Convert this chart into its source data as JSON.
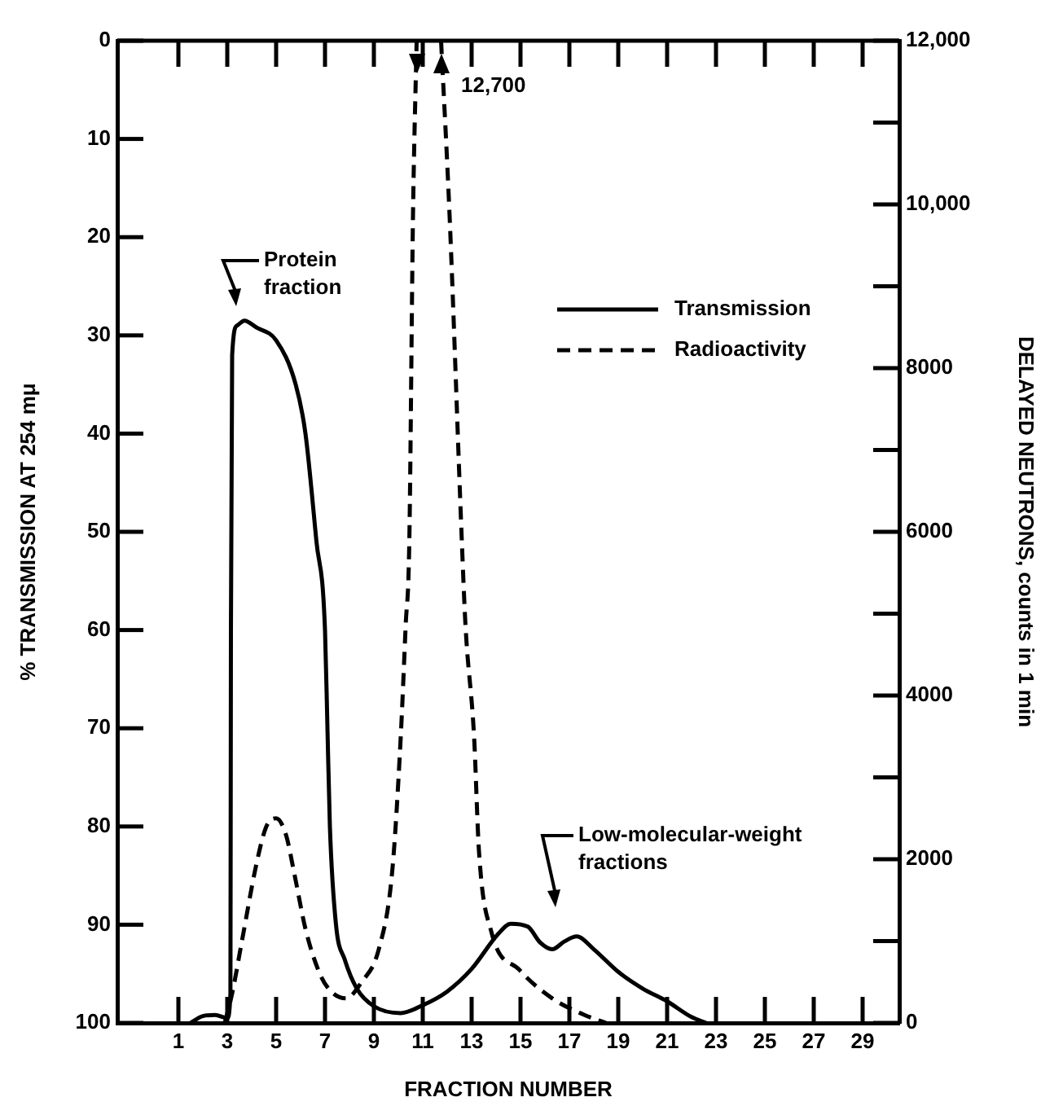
{
  "chart_data": {
    "type": "line",
    "xlabel": "FRACTION NUMBER",
    "ylabel": "% TRANSMISSION AT 254 mμ",
    "y2label": "DELAYED NEUTRONS, counts in 1 min",
    "xlim": [
      -1.5,
      30.5
    ],
    "xticks": [
      1,
      3,
      5,
      7,
      9,
      11,
      13,
      15,
      17,
      19,
      21,
      23,
      25,
      27,
      29
    ],
    "ylim": [
      100,
      0
    ],
    "yticks": [
      0,
      10,
      20,
      30,
      40,
      50,
      60,
      70,
      80,
      90,
      100
    ],
    "y2lim": [
      0,
      12000
    ],
    "y2ticks": [
      0,
      {
        "value": 1000,
        "label": null
      },
      2000,
      {
        "value": 3000,
        "label": null
      },
      4000,
      {
        "value": 5000,
        "label": null
      },
      6000,
      {
        "value": 7000,
        "label": null
      },
      8000,
      {
        "value": 9000,
        "label": null
      },
      {
        "value": 10000,
        "label": "10,000"
      },
      {
        "value": 11000,
        "label": null
      },
      {
        "value": 12000,
        "label": "12,000"
      }
    ],
    "grid": false,
    "legend": "top right",
    "series": [
      {
        "name": "Transmission",
        "color": "#000000",
        "line_style": "solid",
        "x": [
          1.5,
          2,
          2.5,
          3,
          3.13,
          3.15,
          3.2,
          3.4,
          3.7,
          4.2,
          5,
          5.8,
          6.2,
          6.65,
          7,
          7.1,
          7.2,
          7.45,
          7.8,
          8.3,
          9,
          10.1,
          11,
          12,
          13,
          14.1,
          14.6,
          15.3,
          15.8,
          16.3,
          16.8,
          17.3,
          18,
          19,
          20,
          21,
          22,
          22.6
        ],
        "values": [
          100,
          99.3,
          99.2,
          99.5,
          97,
          60,
          32,
          29,
          28.5,
          29.2,
          30.5,
          35,
          40,
          51,
          60,
          70,
          80,
          90,
          93.5,
          96.5,
          98.3,
          99,
          98.2,
          96.8,
          94.5,
          90.9,
          89.9,
          90.2,
          91.8,
          92.5,
          91.7,
          91.2,
          92.5,
          94.8,
          96.5,
          97.8,
          99.4,
          100
        ]
      },
      {
        "name": "Radioactivity",
        "color": "#000000",
        "line_style": "dashed",
        "axis": "y2",
        "x": [
          2.9,
          3.2,
          3.6,
          4.2,
          4.6,
          5,
          5.4,
          5.76,
          6.2,
          6.76,
          7.2,
          7.85,
          8.5,
          9.2,
          9.75,
          10.1,
          10.3,
          10.45,
          10.6,
          10.75,
          11.25,
          11.75,
          12.1,
          12.6,
          12.75,
          13.1,
          13.3,
          13.8,
          14.95,
          16.3,
          17.6,
          18.5
        ],
        "values": [
          0,
          360,
          1000,
          1950,
          2400,
          2500,
          2300,
          1800,
          1150,
          620,
          400,
          300,
          500,
          900,
          1850,
          3500,
          4850,
          5880,
          9850,
          12000,
          null,
          12000,
          9850,
          5880,
          4850,
          3500,
          2100,
          1120,
          650,
          300,
          100,
          0
        ]
      }
    ],
    "annotations": [
      "Protein fraction",
      "12,700",
      "Low-molecular-weight fractions"
    ]
  }
}
